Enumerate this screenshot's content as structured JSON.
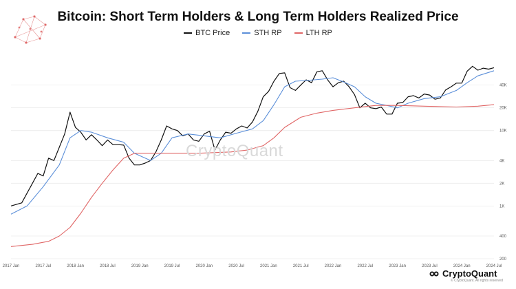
{
  "chart_data": {
    "type": "line",
    "title": "Bitcoin: Short Term Holders & Long Term Holders Realized Price",
    "y_scale": "log",
    "ylim": [
      200,
      100000
    ],
    "xlim": [
      "2017-01",
      "2024-07"
    ],
    "grid": "horizontal",
    "legend_position": "top-center",
    "x_tick_labels": [
      "2017 Jan",
      "2017 Jul",
      "2018 Jan",
      "2018 Jul",
      "2019 Jan",
      "2019 Jul",
      "2020 Jan",
      "2020 Jul",
      "2021 Jan",
      "2021 Jul",
      "2022 Jan",
      "2022 Jul",
      "2023 Jan",
      "2023 Jul",
      "2024 Jan",
      "2024 Jul"
    ],
    "y_ticks": [
      {
        "value": 40000,
        "label": "40K"
      },
      {
        "value": 20000,
        "label": "20K"
      },
      {
        "value": 10000,
        "label": "10K"
      },
      {
        "value": 4000,
        "label": "4K"
      },
      {
        "value": 2000,
        "label": "2K"
      },
      {
        "value": 1000,
        "label": "1K"
      },
      {
        "value": 400,
        "label": "400"
      },
      {
        "value": 200,
        "label": "200"
      }
    ],
    "series": [
      {
        "name": "BTC Price",
        "color": "#111111",
        "points": [
          [
            "2017-01",
            1000
          ],
          [
            "2017-03",
            1100
          ],
          [
            "2017-05",
            2000
          ],
          [
            "2017-06",
            2700
          ],
          [
            "2017-07",
            2500
          ],
          [
            "2017-08",
            4300
          ],
          [
            "2017-09",
            4000
          ],
          [
            "2017-10",
            6000
          ],
          [
            "2017-11",
            9000
          ],
          [
            "2017-12",
            17500
          ],
          [
            "2018-01",
            11000
          ],
          [
            "2018-02",
            9500
          ],
          [
            "2018-03",
            7500
          ],
          [
            "2018-04",
            8800
          ],
          [
            "2018-05",
            7500
          ],
          [
            "2018-06",
            6300
          ],
          [
            "2018-07",
            7500
          ],
          [
            "2018-08",
            6500
          ],
          [
            "2018-09",
            6500
          ],
          [
            "2018-10",
            6400
          ],
          [
            "2018-11",
            4300
          ],
          [
            "2018-12",
            3500
          ],
          [
            "2019-01",
            3500
          ],
          [
            "2019-02",
            3700
          ],
          [
            "2019-03",
            4000
          ],
          [
            "2019-04",
            5200
          ],
          [
            "2019-05",
            7500
          ],
          [
            "2019-06",
            11500
          ],
          [
            "2019-07",
            10500
          ],
          [
            "2019-08",
            10000
          ],
          [
            "2019-09",
            8500
          ],
          [
            "2019-10",
            9000
          ],
          [
            "2019-11",
            7500
          ],
          [
            "2019-12",
            7200
          ],
          [
            "2020-01",
            9000
          ],
          [
            "2020-02",
            9800
          ],
          [
            "2020-03",
            5500
          ],
          [
            "2020-04",
            7500
          ],
          [
            "2020-05",
            9500
          ],
          [
            "2020-06",
            9200
          ],
          [
            "2020-07",
            10500
          ],
          [
            "2020-08",
            11500
          ],
          [
            "2020-09",
            10800
          ],
          [
            "2020-10",
            13000
          ],
          [
            "2020-11",
            18000
          ],
          [
            "2020-12",
            28000
          ],
          [
            "2021-01",
            33000
          ],
          [
            "2021-02",
            45000
          ],
          [
            "2021-03",
            57000
          ],
          [
            "2021-04",
            58000
          ],
          [
            "2021-05",
            37000
          ],
          [
            "2021-06",
            34000
          ],
          [
            "2021-07",
            40000
          ],
          [
            "2021-08",
            47000
          ],
          [
            "2021-09",
            43000
          ],
          [
            "2021-10",
            60000
          ],
          [
            "2021-11",
            62000
          ],
          [
            "2021-12",
            47000
          ],
          [
            "2022-01",
            38000
          ],
          [
            "2022-02",
            43000
          ],
          [
            "2022-03",
            45000
          ],
          [
            "2022-04",
            38000
          ],
          [
            "2022-05",
            30000
          ],
          [
            "2022-06",
            20000
          ],
          [
            "2022-07",
            23000
          ],
          [
            "2022-08",
            20000
          ],
          [
            "2022-09",
            19500
          ],
          [
            "2022-10",
            20500
          ],
          [
            "2022-11",
            16500
          ],
          [
            "2022-12",
            16500
          ],
          [
            "2023-01",
            23000
          ],
          [
            "2023-02",
            23500
          ],
          [
            "2023-03",
            28000
          ],
          [
            "2023-04",
            29000
          ],
          [
            "2023-05",
            27000
          ],
          [
            "2023-06",
            30500
          ],
          [
            "2023-07",
            29500
          ],
          [
            "2023-08",
            26000
          ],
          [
            "2023-09",
            27000
          ],
          [
            "2023-10",
            34500
          ],
          [
            "2023-11",
            38000
          ],
          [
            "2023-12",
            42500
          ],
          [
            "2024-01",
            42500
          ],
          [
            "2024-02",
            61000
          ],
          [
            "2024-03",
            71000
          ],
          [
            "2024-04",
            63000
          ],
          [
            "2024-05",
            67000
          ],
          [
            "2024-06",
            65000
          ],
          [
            "2024-07",
            68000
          ]
        ]
      },
      {
        "name": "STH RP",
        "color": "#5b8fd9",
        "points": [
          [
            "2017-01",
            780
          ],
          [
            "2017-04",
            1000
          ],
          [
            "2017-07",
            1800
          ],
          [
            "2017-10",
            3500
          ],
          [
            "2017-12",
            8000
          ],
          [
            "2018-02",
            10000
          ],
          [
            "2018-04",
            9500
          ],
          [
            "2018-07",
            8000
          ],
          [
            "2018-10",
            7000
          ],
          [
            "2018-12",
            5000
          ],
          [
            "2019-03",
            4000
          ],
          [
            "2019-05",
            5000
          ],
          [
            "2019-07",
            8000
          ],
          [
            "2019-10",
            9000
          ],
          [
            "2020-01",
            8500
          ],
          [
            "2020-04",
            8000
          ],
          [
            "2020-07",
            9200
          ],
          [
            "2020-10",
            10500
          ],
          [
            "2020-12",
            13500
          ],
          [
            "2021-02",
            22000
          ],
          [
            "2021-04",
            38000
          ],
          [
            "2021-06",
            45000
          ],
          [
            "2021-08",
            46000
          ],
          [
            "2021-11",
            48000
          ],
          [
            "2022-01",
            50000
          ],
          [
            "2022-03",
            44000
          ],
          [
            "2022-05",
            38000
          ],
          [
            "2022-07",
            28000
          ],
          [
            "2022-09",
            23000
          ],
          [
            "2022-11",
            21500
          ],
          [
            "2023-01",
            20000
          ],
          [
            "2023-03",
            23000
          ],
          [
            "2023-06",
            26500
          ],
          [
            "2023-09",
            28000
          ],
          [
            "2023-12",
            34000
          ],
          [
            "2024-02",
            43000
          ],
          [
            "2024-04",
            53000
          ],
          [
            "2024-07",
            62000
          ]
        ]
      },
      {
        "name": "LTH RP",
        "color": "#e06666",
        "points": [
          [
            "2017-01",
            290
          ],
          [
            "2017-05",
            310
          ],
          [
            "2017-08",
            340
          ],
          [
            "2017-10",
            400
          ],
          [
            "2017-12",
            520
          ],
          [
            "2018-02",
            800
          ],
          [
            "2018-04",
            1300
          ],
          [
            "2018-06",
            2000
          ],
          [
            "2018-08",
            3000
          ],
          [
            "2018-10",
            4300
          ],
          [
            "2018-12",
            5000
          ],
          [
            "2019-06",
            5000
          ],
          [
            "2019-12",
            5000
          ],
          [
            "2020-06",
            5200
          ],
          [
            "2020-09",
            5500
          ],
          [
            "2020-12",
            6300
          ],
          [
            "2021-02",
            8000
          ],
          [
            "2021-04",
            11000
          ],
          [
            "2021-07",
            15000
          ],
          [
            "2021-10",
            17000
          ],
          [
            "2022-01",
            18500
          ],
          [
            "2022-05",
            20000
          ],
          [
            "2022-09",
            21500
          ],
          [
            "2023-01",
            21500
          ],
          [
            "2023-06",
            21000
          ],
          [
            "2023-12",
            20500
          ],
          [
            "2024-04",
            21000
          ],
          [
            "2024-07",
            22000
          ]
        ]
      }
    ]
  },
  "watermark": "CryptoQuant",
  "brand": {
    "name": "CryptoQuant",
    "copyright": "© CryptoQuant. All rights reserved"
  }
}
